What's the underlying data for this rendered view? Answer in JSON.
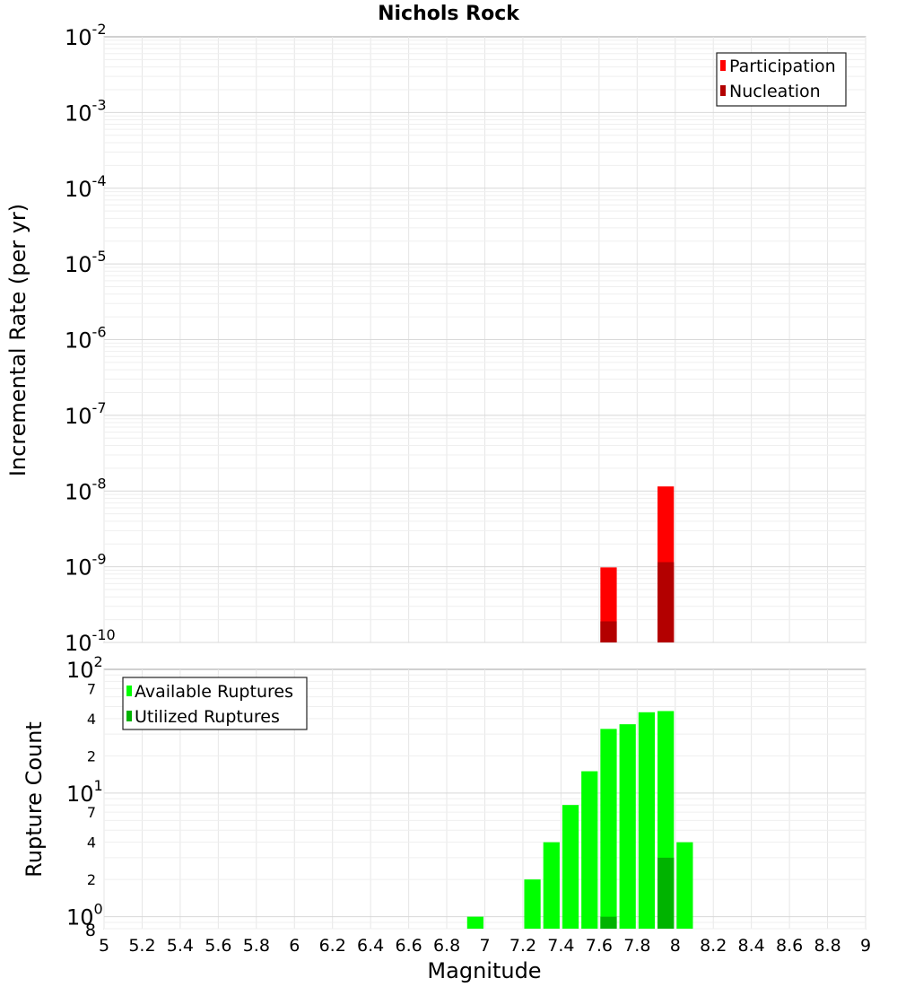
{
  "chart_data": [
    {
      "type": "bar",
      "title": "Nichols Rock",
      "ylabel": "Incremental Rate (per yr)",
      "yscale": "log",
      "ylim": [
        1e-10,
        0.01
      ],
      "y_ticks": [
        -10,
        -9,
        -8,
        -7,
        -6,
        -5,
        -4,
        -3,
        -2
      ],
      "xlim": [
        5,
        9
      ],
      "bin_width": 0.1,
      "grid": true,
      "legend_position": "top-right",
      "series": [
        {
          "name": "Participation",
          "color": "#ff0000",
          "x": [
            7.65,
            7.95
          ],
          "values": [
            9.8e-10,
            1.15e-08
          ]
        },
        {
          "name": "Nucleation",
          "color": "#b30000",
          "x": [
            7.65,
            7.95
          ],
          "values": [
            1.9e-10,
            1.15e-09
          ]
        }
      ]
    },
    {
      "type": "bar",
      "ylabel": "Rupture Count",
      "xlabel": "Magnitude",
      "yscale": "log",
      "ylim": [
        0.8,
        100
      ],
      "major_ticks": [
        0,
        1,
        2
      ],
      "minor_tick_labels": [
        {
          "value": 2,
          "label": "2"
        },
        {
          "value": 4,
          "label": "4"
        },
        {
          "value": 7,
          "label": "7"
        },
        {
          "value": 20,
          "label": "2"
        },
        {
          "value": 40,
          "label": "4"
        },
        {
          "value": 70,
          "label": "7"
        }
      ],
      "bottom_tick_label": "8",
      "x_ticks": [
        "5",
        "5.2",
        "5.4",
        "5.6",
        "5.8",
        "6",
        "6.2",
        "6.4",
        "6.6",
        "6.8",
        "7",
        "7.2",
        "7.4",
        "7.6",
        "7.8",
        "8",
        "8.2",
        "8.4",
        "8.6",
        "8.8",
        "9"
      ],
      "xlim": [
        5,
        9
      ],
      "bin_width": 0.1,
      "grid": true,
      "legend_position": "top-left",
      "series": [
        {
          "name": "Available Ruptures",
          "color": "#00ff00",
          "x": [
            6.95,
            7.25,
            7.35,
            7.45,
            7.55,
            7.65,
            7.75,
            7.85,
            7.95,
            8.05
          ],
          "values": [
            1,
            2,
            4,
            8,
            15,
            33,
            36,
            45,
            46,
            4
          ]
        },
        {
          "name": "Utilized Ruptures",
          "color": "#00b300",
          "x": [
            7.65,
            7.95
          ],
          "values": [
            1,
            3
          ]
        }
      ]
    }
  ]
}
